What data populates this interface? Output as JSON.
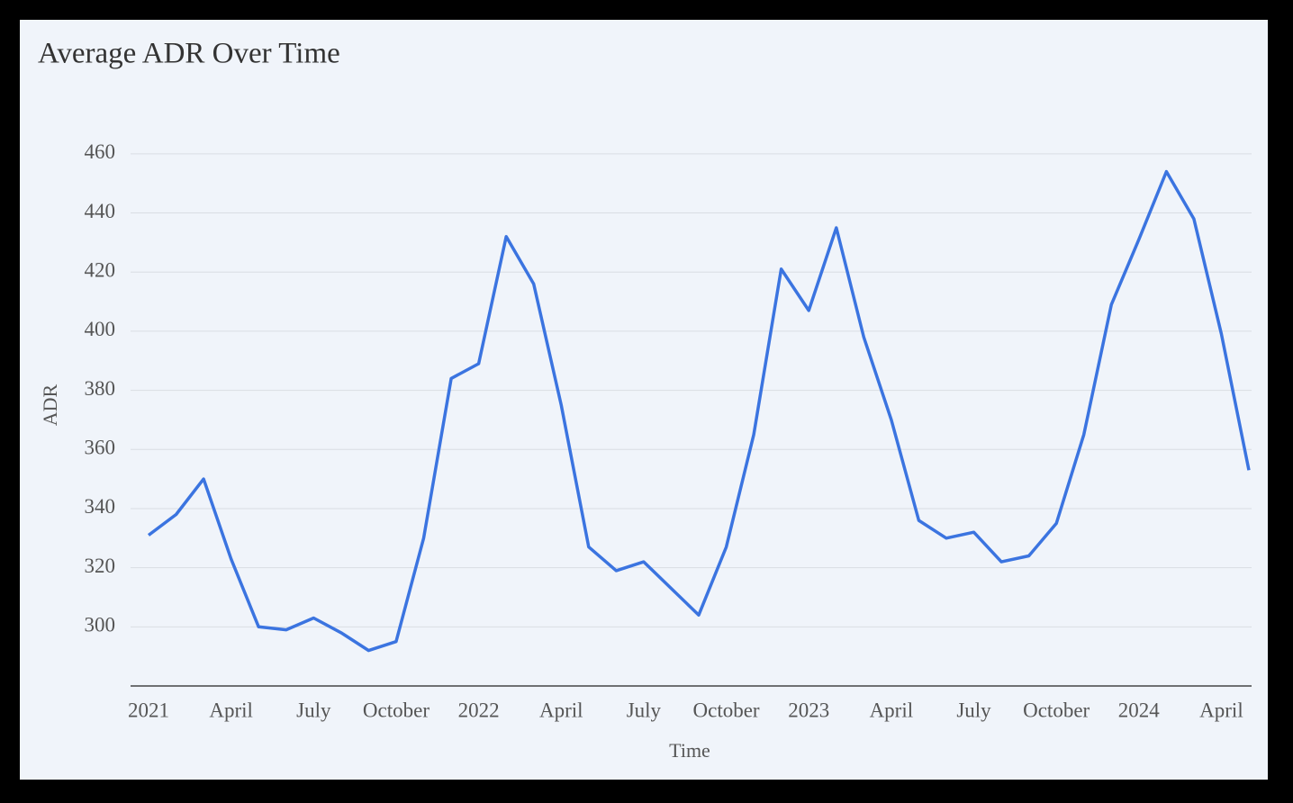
{
  "chart_data": {
    "type": "line",
    "title": "Average ADR Over Time",
    "x_label": "Time",
    "y_label": "ADR",
    "x": [
      "2021-01",
      "2021-02",
      "2021-03",
      "2021-04",
      "2021-05",
      "2021-06",
      "2021-07",
      "2021-08",
      "2021-09",
      "2021-10",
      "2021-11",
      "2021-12",
      "2022-01",
      "2022-02",
      "2022-03",
      "2022-04",
      "2022-05",
      "2022-06",
      "2022-07",
      "2022-08",
      "2022-09",
      "2022-10",
      "2022-11",
      "2022-12",
      "2023-01",
      "2023-02",
      "2023-03",
      "2023-04",
      "2023-05",
      "2023-06",
      "2023-07",
      "2023-08",
      "2023-09",
      "2023-10",
      "2023-11",
      "2023-12",
      "2024-01",
      "2024-02",
      "2024-03",
      "2024-04",
      "2024-05"
    ],
    "values": [
      331,
      338,
      350,
      323,
      300,
      299,
      303,
      298,
      292,
      295,
      330,
      384,
      389,
      432,
      416,
      375,
      327,
      319,
      322,
      313,
      304,
      327,
      365,
      421,
      407,
      435,
      398,
      370,
      336,
      330,
      332,
      322,
      324,
      335,
      365,
      409,
      431,
      454,
      438,
      399,
      353
    ],
    "color": "#3b74e0",
    "xlim": [
      "2021-01",
      "2024-05"
    ],
    "xticks": [
      {
        "value": "2021-01",
        "label": "2021"
      },
      {
        "value": "2021-04",
        "label": "April"
      },
      {
        "value": "2021-07",
        "label": "July"
      },
      {
        "value": "2021-10",
        "label": "October"
      },
      {
        "value": "2022-01",
        "label": "2022"
      },
      {
        "value": "2022-04",
        "label": "April"
      },
      {
        "value": "2022-07",
        "label": "July"
      },
      {
        "value": "2022-10",
        "label": "October"
      },
      {
        "value": "2023-01",
        "label": "2023"
      },
      {
        "value": "2023-04",
        "label": "April"
      },
      {
        "value": "2023-07",
        "label": "July"
      },
      {
        "value": "2023-10",
        "label": "October"
      },
      {
        "value": "2024-01",
        "label": "2024"
      },
      {
        "value": "2024-04",
        "label": "April"
      }
    ],
    "ylim": [
      280,
      463
    ],
    "yticks": [
      300,
      320,
      340,
      360,
      380,
      400,
      420,
      440,
      460
    ],
    "grid": true
  }
}
